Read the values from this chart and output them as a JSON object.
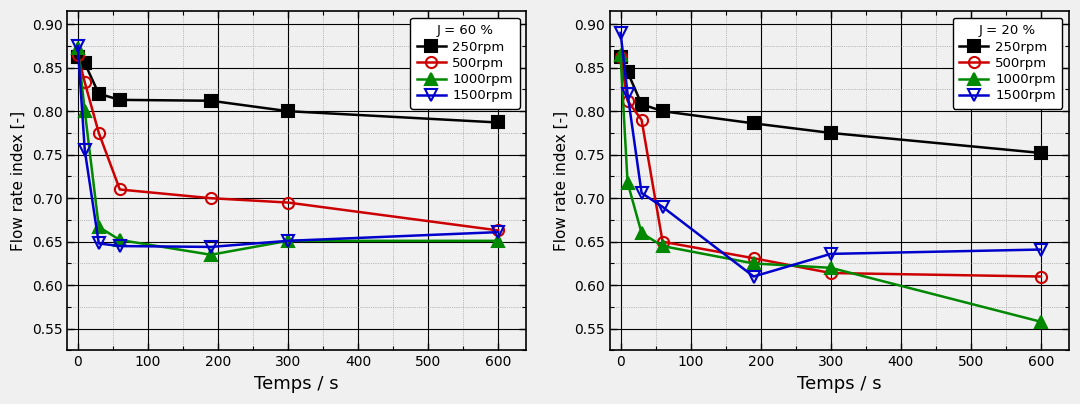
{
  "left_title": "J = 60 %",
  "right_title": "J = 20 %",
  "xlabel": "Temps / s",
  "ylabel": "Flow rate index [-]",
  "xlim": [
    -15,
    640
  ],
  "ylim": [
    0.525,
    0.915
  ],
  "yticks": [
    0.55,
    0.6,
    0.65,
    0.7,
    0.75,
    0.8,
    0.85,
    0.9
  ],
  "xticks": [
    0,
    100,
    200,
    300,
    400,
    500,
    600
  ],
  "left": {
    "250rpm": {
      "x": [
        0,
        10,
        30,
        60,
        190,
        300,
        600
      ],
      "y": [
        0.862,
        0.855,
        0.82,
        0.813,
        0.812,
        0.8,
        0.787
      ],
      "color": "#000000",
      "marker": "s",
      "markersize": 8,
      "linewidth": 1.8,
      "fillstyle": "full"
    },
    "500rpm": {
      "x": [
        0,
        10,
        30,
        60,
        190,
        300,
        600
      ],
      "y": [
        0.865,
        0.833,
        0.775,
        0.71,
        0.7,
        0.695,
        0.663
      ],
      "color": "#cc0000",
      "marker": "o",
      "markersize": 8,
      "linewidth": 1.8,
      "fillstyle": "none"
    },
    "1000rpm": {
      "x": [
        0,
        10,
        30,
        60,
        190,
        300,
        600
      ],
      "y": [
        0.873,
        0.8,
        0.667,
        0.652,
        0.635,
        0.651,
        0.651
      ],
      "color": "#008800",
      "marker": "^",
      "markersize": 8,
      "linewidth": 1.8,
      "fillstyle": "full"
    },
    "1500rpm": {
      "x": [
        0,
        10,
        30,
        60,
        190,
        300,
        600
      ],
      "y": [
        0.875,
        0.755,
        0.648,
        0.645,
        0.644,
        0.651,
        0.661
      ],
      "color": "#0000cc",
      "marker": "v",
      "markersize": 8,
      "linewidth": 1.8,
      "fillstyle": "none"
    }
  },
  "right": {
    "250rpm": {
      "x": [
        0,
        10,
        30,
        60,
        190,
        300,
        600
      ],
      "y": [
        0.862,
        0.845,
        0.808,
        0.8,
        0.786,
        0.775,
        0.752
      ],
      "color": "#000000",
      "marker": "s",
      "markersize": 8,
      "linewidth": 1.8,
      "fillstyle": "full"
    },
    "500rpm": {
      "x": [
        0,
        10,
        30,
        60,
        190,
        300,
        600
      ],
      "y": [
        0.862,
        0.812,
        0.79,
        0.65,
        0.631,
        0.614,
        0.61
      ],
      "color": "#cc0000",
      "marker": "o",
      "markersize": 8,
      "linewidth": 1.8,
      "fillstyle": "none"
    },
    "1000rpm": {
      "x": [
        0,
        10,
        30,
        60,
        190,
        300,
        600
      ],
      "y": [
        0.864,
        0.718,
        0.66,
        0.645,
        0.625,
        0.62,
        0.558
      ],
      "color": "#008800",
      "marker": "^",
      "markersize": 8,
      "linewidth": 1.8,
      "fillstyle": "full"
    },
    "1500rpm": {
      "x": [
        0,
        10,
        30,
        60,
        190,
        300,
        600
      ],
      "y": [
        0.89,
        0.82,
        0.706,
        0.69,
        0.61,
        0.636,
        0.641
      ],
      "color": "#0000cc",
      "marker": "v",
      "markersize": 8,
      "linewidth": 1.8,
      "fillstyle": "none"
    }
  },
  "series_keys": [
    "250rpm",
    "500rpm",
    "1000rpm",
    "1500rpm"
  ],
  "bg_color": "#f0f0f0",
  "grid_major_color": "#000000",
  "grid_minor_color": "#888888",
  "spine_linewidth": 1.2,
  "tick_labelsize": 10,
  "xlabel_fontsize": 13,
  "ylabel_fontsize": 11,
  "legend_fontsize": 9.5,
  "legend_title_fontsize": 9.5
}
